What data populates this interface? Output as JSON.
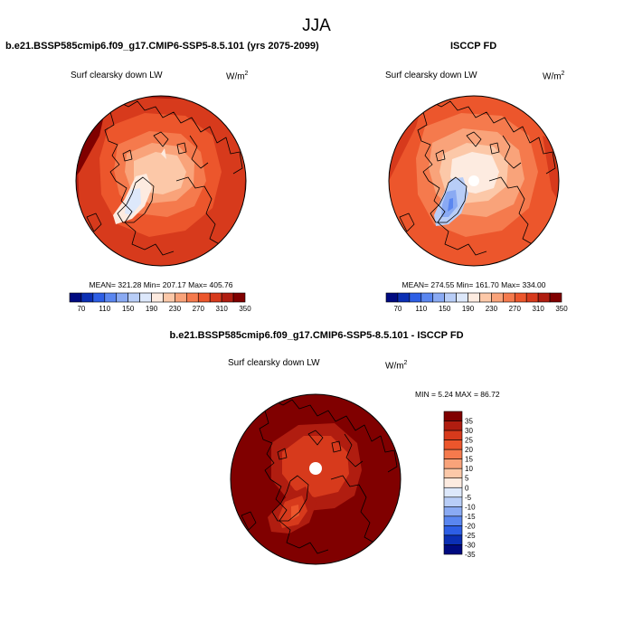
{
  "main_title": "JJA",
  "panels": [
    {
      "id": "model",
      "title": "b.e21.BSSP585cmip6.f09_g17.CMIP6-SSP5-8.5.101 (yrs 2075-2099)",
      "variable": "Surf clearsky down LW",
      "units_base": "W/m",
      "units_exp": "2",
      "stats": "MEAN= 321.28  Min= 207.17  Max= 405.76"
    },
    {
      "id": "obs",
      "title": "ISCCP FD",
      "variable": "Surf clearsky down LW",
      "units_base": "W/m",
      "units_exp": "2",
      "stats": "MEAN= 274.55  Min= 161.70  Max= 334.00"
    },
    {
      "id": "diff",
      "title": "b.e21.BSSP585cmip6.f09_g17.CMIP6-SSP5-8.5.101 - ISCCP FD",
      "variable": "Surf clearsky down LW",
      "units_base": "W/m",
      "units_exp": "2",
      "stats": "MIN =  5.24 MAX =  86.72"
    }
  ],
  "chart_data": [
    {
      "type": "heatmap",
      "projection": "north polar stereographic",
      "variable": "Surf clearsky down LW",
      "units": "W/m^2",
      "stats": {
        "mean": 321.28,
        "min": 207.17,
        "max": 405.76
      },
      "colorbar": {
        "orientation": "horizontal",
        "levels": [
          70,
          90,
          110,
          130,
          150,
          170,
          190,
          210,
          230,
          250,
          270,
          290,
          310,
          330,
          350
        ],
        "tick_labels": [
          "70",
          "110",
          "150",
          "190",
          "230",
          "270",
          "310",
          "350"
        ]
      }
    },
    {
      "type": "heatmap",
      "projection": "north polar stereographic",
      "variable": "Surf clearsky down LW",
      "units": "W/m^2",
      "stats": {
        "mean": 274.55,
        "min": 161.7,
        "max": 334.0
      },
      "colorbar": {
        "orientation": "horizontal",
        "levels": [
          70,
          90,
          110,
          130,
          150,
          170,
          190,
          210,
          230,
          250,
          270,
          290,
          310,
          330,
          350
        ],
        "tick_labels": [
          "70",
          "110",
          "150",
          "190",
          "230",
          "270",
          "310",
          "350"
        ]
      }
    },
    {
      "type": "heatmap",
      "projection": "north polar stereographic",
      "variable": "Surf clearsky down LW",
      "units": "W/m^2",
      "stats": {
        "min": 5.24,
        "max": 86.72
      },
      "colorbar": {
        "orientation": "vertical",
        "levels": [
          35,
          30,
          25,
          20,
          15,
          10,
          5,
          0,
          -5,
          -10,
          -15,
          -20,
          -25,
          -30,
          -35
        ],
        "tick_labels": [
          "35",
          "30",
          "25",
          "20",
          "15",
          "10",
          "5",
          "0",
          "-5",
          "-10",
          "-15",
          "-20",
          "-25",
          "-30",
          "-35"
        ]
      }
    }
  ],
  "colors": {
    "abs_palette": [
      "#000a80",
      "#0b2fb4",
      "#2d5ee5",
      "#5a86f0",
      "#8aaaf3",
      "#b8cdf7",
      "#dde8fb",
      "#fdebe0",
      "#fcc8a8",
      "#f9a37a",
      "#f57a4d",
      "#ec562c",
      "#d73a1c",
      "#b01d10",
      "#800000"
    ],
    "diff_palette": [
      "#800000",
      "#b01d10",
      "#d73a1c",
      "#ec562c",
      "#f57a4d",
      "#f9a37a",
      "#fcc8a8",
      "#fdebe0",
      "#dde8fb",
      "#b8cdf7",
      "#8aaaf3",
      "#5a86f0",
      "#2d5ee5",
      "#0b2fb4",
      "#000a80"
    ],
    "coastline": "#000000"
  }
}
